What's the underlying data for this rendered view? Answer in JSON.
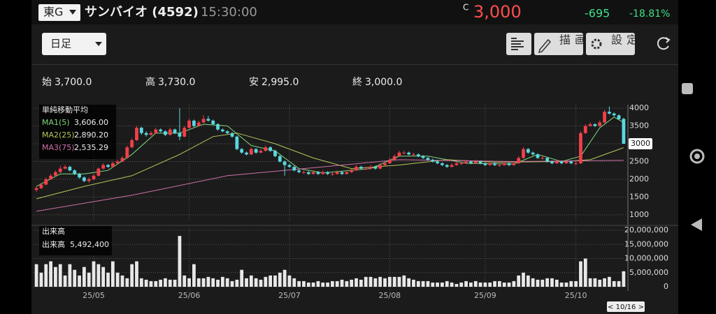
{
  "header": {
    "market": "東G",
    "name": "サンバイオ (4592)",
    "time": "15:30:00",
    "price_mark": "C",
    "price": "3,000",
    "change": "-695",
    "change_pct": "-18.81%"
  },
  "toolbar": {
    "period": "日足",
    "draw": "描画",
    "settings": "設定"
  },
  "ohlc_summary": [
    {
      "label": "始",
      "value": "3,700.0"
    },
    {
      "label": "高",
      "value": "3,730.0"
    },
    {
      "label": "安",
      "value": "2,995.0"
    },
    {
      "label": "終",
      "value": "3,000.0"
    }
  ],
  "chart_data": {
    "type": "candlestick",
    "ma_title": "単純移動平均",
    "up_color": "#f0404a",
    "down_color": "#5ad8e0",
    "ylim": [
      800,
      4100
    ],
    "yticks": [
      1000,
      1500,
      2000,
      2500,
      3000,
      3500,
      4000
    ],
    "grid": true,
    "xlim": [
      -0.6,
      123.6
    ],
    "xticks": [
      {
        "value": 12,
        "label": "25/05"
      },
      {
        "value": 32,
        "label": "25/06"
      },
      {
        "value": 53,
        "label": "25/07"
      },
      {
        "value": 74,
        "label": "25/08"
      },
      {
        "value": 94,
        "label": "25/09"
      },
      {
        "value": 113,
        "label": "25/10"
      }
    ],
    "last_price": 3000,
    "cursor_label": "< 10/16 >",
    "ohlc": [
      [
        1700,
        1800,
        1650,
        1750
      ],
      [
        1750,
        1900,
        1720,
        1850
      ],
      [
        1850,
        2050,
        1830,
        2000
      ],
      [
        2000,
        2150,
        1980,
        2100
      ],
      [
        2100,
        2250,
        2080,
        2200
      ],
      [
        2200,
        2380,
        2180,
        2300
      ],
      [
        2300,
        2400,
        2280,
        2350
      ],
      [
        2350,
        2380,
        2220,
        2250
      ],
      [
        2250,
        2280,
        2120,
        2150
      ],
      [
        2150,
        2180,
        2020,
        2050
      ],
      [
        2050,
        2080,
        1920,
        1950
      ],
      [
        1950,
        2050,
        1900,
        2000
      ],
      [
        2000,
        2150,
        1980,
        2100
      ],
      [
        2100,
        2330,
        2080,
        2300
      ],
      [
        2300,
        2450,
        2280,
        2400
      ],
      [
        2400,
        2430,
        2320,
        2350
      ],
      [
        2350,
        2500,
        2330,
        2450
      ],
      [
        2450,
        2550,
        2430,
        2500
      ],
      [
        2500,
        2650,
        2480,
        2600
      ],
      [
        2600,
        2950,
        2580,
        2900
      ],
      [
        2900,
        3150,
        2880,
        3100
      ],
      [
        3100,
        3500,
        3080,
        3450
      ],
      [
        3450,
        3480,
        3250,
        3300
      ],
      [
        3300,
        3350,
        3200,
        3250
      ],
      [
        3250,
        3350,
        3230,
        3300
      ],
      [
        3300,
        3450,
        3280,
        3400
      ],
      [
        3400,
        3430,
        3320,
        3350
      ],
      [
        3350,
        3380,
        3220,
        3250
      ],
      [
        3250,
        3450,
        3230,
        3400
      ],
      [
        3400,
        3430,
        3270,
        3300
      ],
      [
        3300,
        4000,
        3100,
        3200
      ],
      [
        3200,
        3500,
        3180,
        3450
      ],
      [
        3450,
        3700,
        3430,
        3650
      ],
      [
        3650,
        3680,
        3470,
        3500
      ],
      [
        3500,
        3650,
        3480,
        3600
      ],
      [
        3600,
        3800,
        3580,
        3700
      ],
      [
        3700,
        3780,
        3620,
        3650
      ],
      [
        3650,
        3680,
        3520,
        3550
      ],
      [
        3550,
        3580,
        3370,
        3400
      ],
      [
        3400,
        3430,
        3320,
        3350
      ],
      [
        3350,
        3380,
        3270,
        3300
      ],
      [
        3300,
        3330,
        3170,
        3200
      ],
      [
        3200,
        3230,
        2820,
        2850
      ],
      [
        2850,
        2880,
        2720,
        2750
      ],
      [
        2750,
        2780,
        2670,
        2700
      ],
      [
        2700,
        2900,
        2680,
        2850
      ],
      [
        2850,
        2880,
        2720,
        2750
      ],
      [
        2750,
        2850,
        2730,
        2800
      ],
      [
        2800,
        2950,
        2780,
        2900
      ],
      [
        2900,
        2930,
        2770,
        2800
      ],
      [
        2800,
        2830,
        2620,
        2650
      ],
      [
        2650,
        2680,
        2470,
        2500
      ],
      [
        2500,
        2530,
        2100,
        2400
      ],
      [
        2400,
        2430,
        2320,
        2350
      ],
      [
        2350,
        2380,
        2220,
        2250
      ],
      [
        2250,
        2280,
        2170,
        2200
      ],
      [
        2200,
        2250,
        2150,
        2200
      ],
      [
        2200,
        2230,
        2120,
        2150
      ],
      [
        2150,
        2250,
        2130,
        2200
      ],
      [
        2200,
        2230,
        2120,
        2150
      ],
      [
        2150,
        2250,
        2130,
        2200
      ],
      [
        2200,
        2230,
        2120,
        2150
      ],
      [
        2150,
        2200,
        2100,
        2150
      ],
      [
        2150,
        2250,
        2130,
        2200
      ],
      [
        2200,
        2230,
        2120,
        2150
      ],
      [
        2150,
        2250,
        2130,
        2200
      ],
      [
        2200,
        2300,
        2180,
        2250
      ],
      [
        2250,
        2400,
        2230,
        2350
      ],
      [
        2350,
        2380,
        2270,
        2300
      ],
      [
        2300,
        2350,
        2250,
        2300
      ],
      [
        2300,
        2400,
        2280,
        2350
      ],
      [
        2350,
        2380,
        2270,
        2300
      ],
      [
        2300,
        2450,
        2280,
        2400
      ],
      [
        2400,
        2500,
        2380,
        2450
      ],
      [
        2450,
        2600,
        2430,
        2550
      ],
      [
        2550,
        2700,
        2530,
        2650
      ],
      [
        2650,
        2800,
        2630,
        2750
      ],
      [
        2750,
        2800,
        2700,
        2750
      ],
      [
        2750,
        2780,
        2670,
        2700
      ],
      [
        2700,
        2750,
        2650,
        2700
      ],
      [
        2700,
        2730,
        2620,
        2650
      ],
      [
        2650,
        2680,
        2570,
        2600
      ],
      [
        2600,
        2630,
        2520,
        2550
      ],
      [
        2550,
        2580,
        2470,
        2500
      ],
      [
        2500,
        2530,
        2420,
        2450
      ],
      [
        2450,
        2480,
        2370,
        2400
      ],
      [
        2400,
        2430,
        2320,
        2350
      ],
      [
        2350,
        2450,
        2330,
        2400
      ],
      [
        2400,
        2500,
        2380,
        2450
      ],
      [
        2450,
        2500,
        2400,
        2450
      ],
      [
        2450,
        2550,
        2430,
        2500
      ],
      [
        2500,
        2530,
        2420,
        2450
      ],
      [
        2450,
        2550,
        2430,
        2500
      ],
      [
        2500,
        2530,
        2420,
        2450
      ],
      [
        2450,
        2480,
        2370,
        2400
      ],
      [
        2400,
        2500,
        2380,
        2450
      ],
      [
        2450,
        2480,
        2370,
        2400
      ],
      [
        2400,
        2450,
        2350,
        2400
      ],
      [
        2400,
        2500,
        2380,
        2450
      ],
      [
        2450,
        2480,
        2370,
        2400
      ],
      [
        2400,
        2500,
        2380,
        2450
      ],
      [
        2450,
        2650,
        2430,
        2600
      ],
      [
        2600,
        2900,
        2580,
        2850
      ],
      [
        2850,
        2880,
        2720,
        2750
      ],
      [
        2750,
        2780,
        2670,
        2700
      ],
      [
        2700,
        2730,
        2570,
        2600
      ],
      [
        2600,
        2650,
        2550,
        2600
      ],
      [
        2600,
        2630,
        2470,
        2500
      ],
      [
        2500,
        2530,
        2420,
        2450
      ],
      [
        2450,
        2550,
        2430,
        2500
      ],
      [
        2500,
        2530,
        2420,
        2450
      ],
      [
        2450,
        2550,
        2430,
        2500
      ],
      [
        2500,
        2530,
        2420,
        2450
      ],
      [
        2450,
        2500,
        2400,
        2450
      ],
      [
        2450,
        3350,
        2430,
        3300
      ],
      [
        3300,
        3550,
        3280,
        3500
      ],
      [
        3500,
        3600,
        3480,
        3550
      ],
      [
        3550,
        3580,
        3470,
        3500
      ],
      [
        3500,
        3650,
        3480,
        3600
      ],
      [
        3600,
        3950,
        3580,
        3900
      ],
      [
        3900,
        4050,
        3820,
        3850
      ],
      [
        3850,
        3880,
        3770,
        3800
      ],
      [
        3800,
        3830,
        3670,
        3695
      ],
      [
        3700,
        3730,
        2995,
        3000
      ]
    ],
    "series": [
      {
        "name": "MA1(5)",
        "color": "#7fd87f",
        "value_label": "3,606.00",
        "x": [
          0,
          5,
          10,
          15,
          20,
          25,
          30,
          35,
          40,
          45,
          50,
          55,
          60,
          70,
          76,
          82,
          90,
          100,
          105,
          110,
          114,
          118,
          121,
          123
        ],
        "values": [
          1800,
          2150,
          2150,
          2250,
          2700,
          3300,
          3300,
          3550,
          3500,
          2950,
          2800,
          2300,
          2180,
          2300,
          2650,
          2650,
          2450,
          2430,
          2700,
          2500,
          2650,
          3450,
          3750,
          3600
        ]
      },
      {
        "name": "MA2(25)",
        "color": "#b8c85a",
        "value_label": "2,890.20",
        "x": [
          0,
          10,
          20,
          30,
          37,
          42,
          50,
          58,
          66,
          76,
          86,
          96,
          110,
          116,
          123
        ],
        "values": [
          1450,
          1800,
          2100,
          2700,
          3200,
          3300,
          3000,
          2600,
          2300,
          2400,
          2550,
          2480,
          2500,
          2550,
          2890
        ]
      },
      {
        "name": "MA3(75)",
        "color": "#d070a8",
        "value_label": "2,535.29",
        "x": [
          0,
          20,
          40,
          60,
          76,
          100,
          123
        ],
        "values": [
          1100,
          1550,
          2100,
          2350,
          2550,
          2500,
          2535
        ]
      }
    ],
    "volume": {
      "title": "出来高",
      "name": "出来高",
      "value_label": "5,492,400",
      "color": "#e8e8e8",
      "ylim": [
        0,
        20000000
      ],
      "yticks": [
        0,
        {
          "value": 5000000,
          "label": "5,000,000"
        },
        {
          "value": 10000000,
          "label": "10,000,000"
        },
        {
          "value": 15000000,
          "label": "15,000,000"
        },
        {
          "value": 20000000,
          "label": "20,000,000"
        }
      ],
      "values": [
        8000000.0,
        5000000.0,
        8000000.0,
        9000000.0,
        7000000.0,
        8000000.0,
        4000000.0,
        8000000.0,
        6000000.0,
        4000000.0,
        7000000.0,
        5000000.0,
        9000000.0,
        8000000.0,
        7000000.0,
        5000000.0,
        9000000.0,
        5000000.0,
        4000000.0,
        3000000.0,
        8000000.0,
        9000000.0,
        3000000.0,
        2500000.0,
        2000000.0,
        2000000.0,
        2500000.0,
        3000000.0,
        2500000.0,
        2500000.0,
        18000000.0,
        4000000.0,
        3000000.0,
        8000000.0,
        3000000.0,
        3000000.0,
        3500000.0,
        3000000.0,
        2500000.0,
        3500000.0,
        3000000.0,
        2000000.0,
        2500000.0,
        6000000.0,
        3000000.0,
        4000000.0,
        3000000.0,
        2500000.0,
        3500000.0,
        4000000.0,
        4000000.0,
        5000000.0,
        6000000.0,
        4000000.0,
        3000000.0,
        2000000.0,
        2000000.0,
        1500000.0,
        1500000.0,
        2000000.0,
        1500000.0,
        1500000.0,
        2000000.0,
        2000000.0,
        2500000.0,
        2000000.0,
        2500000.0,
        3000000.0,
        2500000.0,
        3500000.0,
        3500000.0,
        3000000.0,
        3500000.0,
        3000000.0,
        3500000.0,
        3500000.0,
        3500000.0,
        4000000.0,
        3000000.0,
        2500000.0,
        2000000.0,
        2000000.0,
        2000000.0,
        1500000.0,
        1500000.0,
        1500000.0,
        2000000.0,
        1500000.0,
        1000000.0,
        1500000.0,
        2000000.0,
        1500000.0,
        2000000.0,
        1500000.0,
        1500000.0,
        1500000.0,
        2000000.0,
        2000000.0,
        1500000.0,
        1500000.0,
        2000000.0,
        4000000.0,
        5000000.0,
        4000000.0,
        3000000.0,
        2500000.0,
        2500000.0,
        3000000.0,
        3000000.0,
        2500000.0,
        1500000.0,
        1500000.0,
        2000000.0,
        2000000.0,
        9000000.0,
        10000000.0,
        3000000.0,
        3000000.0,
        2500000.0,
        3000000.0,
        3500000.0,
        2000000.0,
        2000000.0,
        5492400
      ]
    }
  }
}
